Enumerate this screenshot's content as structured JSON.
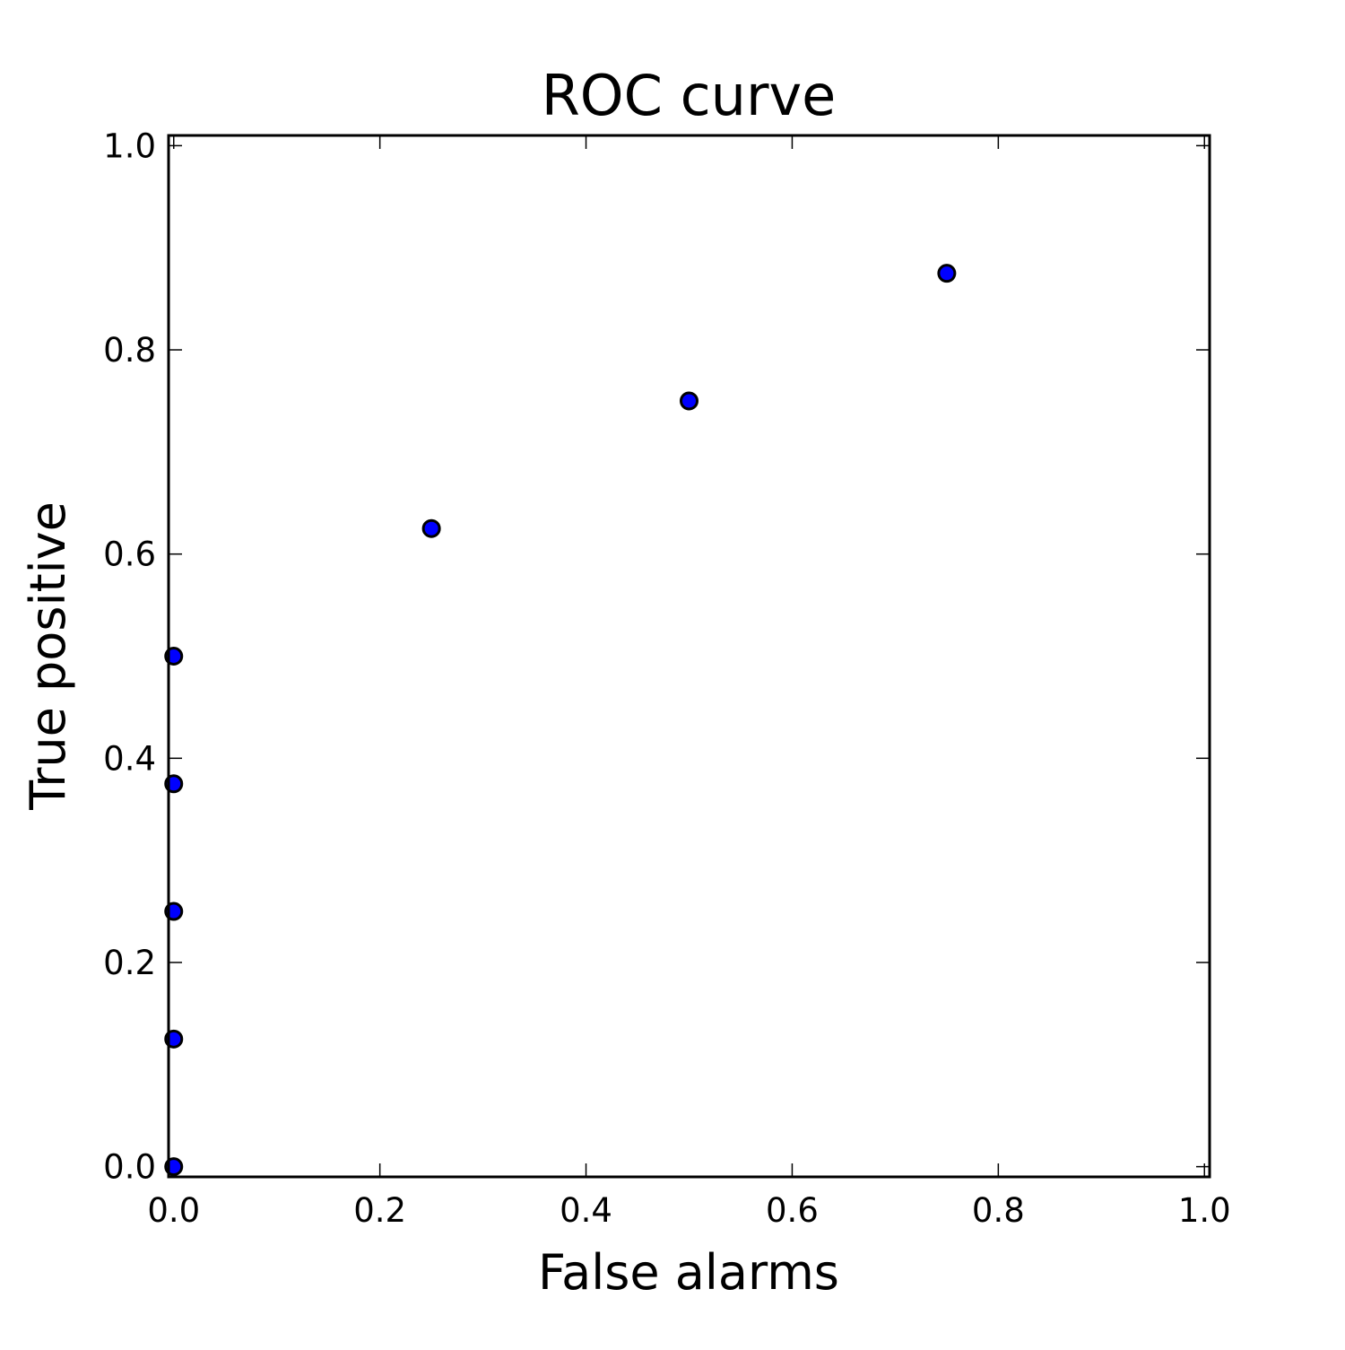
{
  "chart_data": {
    "type": "scatter",
    "title": "ROC curve",
    "xlabel": "False alarms",
    "ylabel": "True positive",
    "xlim": [
      -0.005,
      1.005
    ],
    "ylim": [
      -0.01,
      1.01
    ],
    "xticks": [
      "0.0",
      "0.2",
      "0.4",
      "0.6",
      "0.8",
      "1.0"
    ],
    "yticks": [
      "0.0",
      "0.2",
      "0.4",
      "0.6",
      "0.8",
      "1.0"
    ],
    "grid": false,
    "legend": "none",
    "series": [
      {
        "color": "#0000ff",
        "edgecolor": "#000000",
        "points": [
          {
            "x": 0.0,
            "y": 0.0
          },
          {
            "x": 0.0,
            "y": 0.125
          },
          {
            "x": 0.0,
            "y": 0.25
          },
          {
            "x": 0.0,
            "y": 0.375
          },
          {
            "x": 0.0,
            "y": 0.5
          },
          {
            "x": 0.25,
            "y": 0.625
          },
          {
            "x": 0.5,
            "y": 0.75
          },
          {
            "x": 0.75,
            "y": 0.875
          }
        ]
      }
    ]
  }
}
